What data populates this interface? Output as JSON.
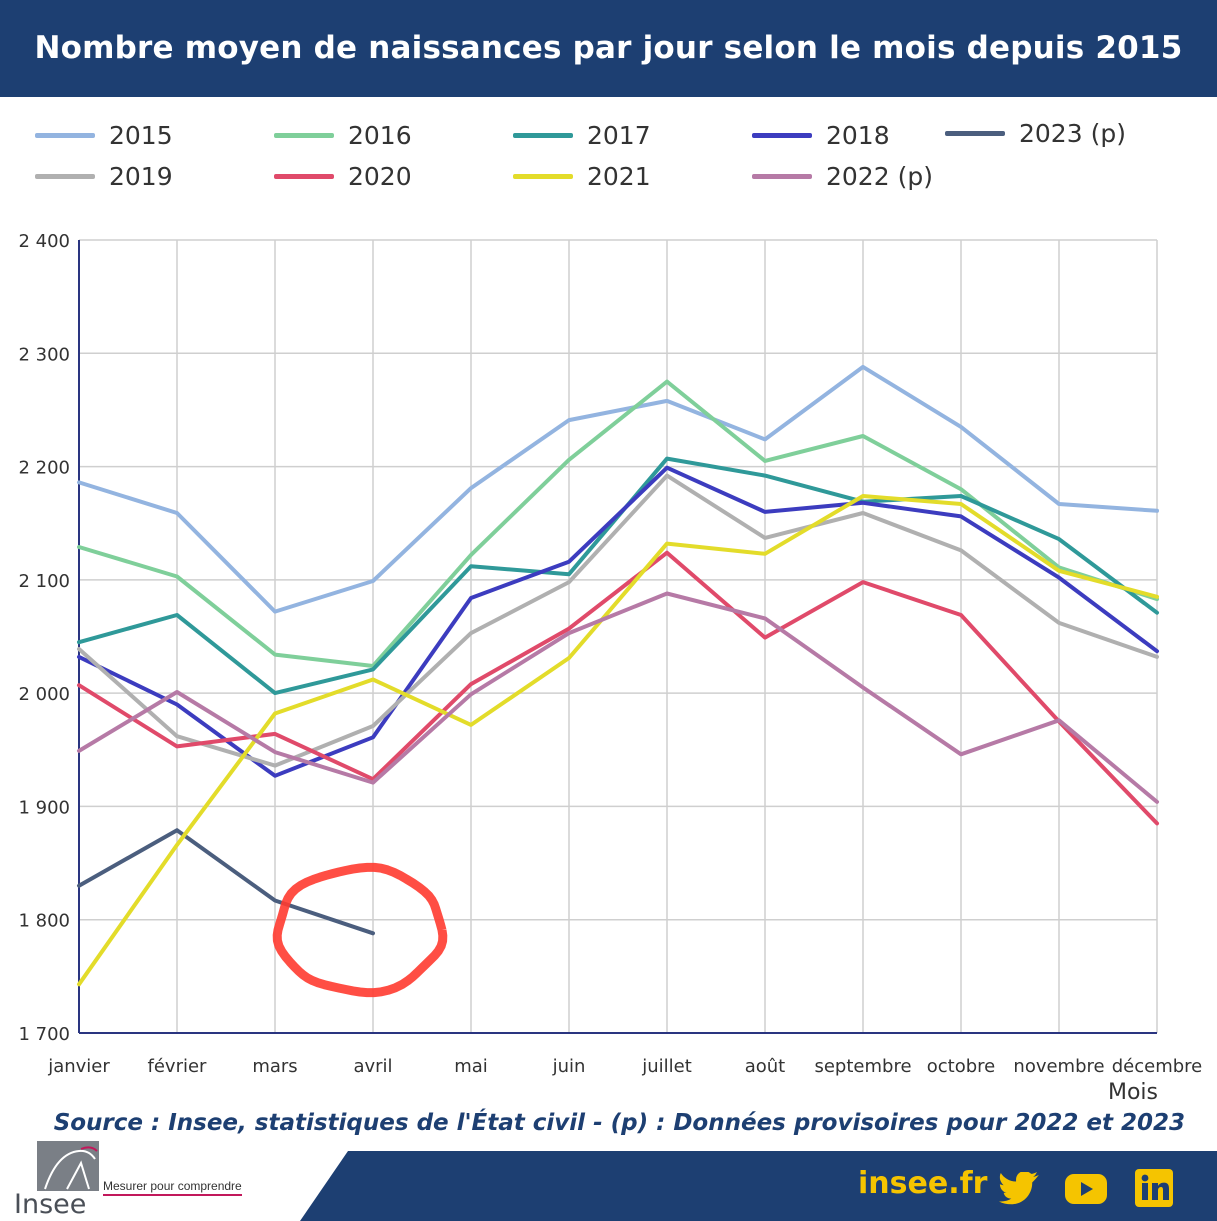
{
  "header": {
    "title": "Nombre moyen de naissances par jour selon le mois depuis 2015"
  },
  "source": "Source : Insee, statistiques de l'État civil - (p) : Données provisoires pour 2022 et 2023",
  "footer": {
    "logo_word": "Insee",
    "tagline": "Mesurer pour comprendre",
    "site": "insee.fr",
    "icons": [
      "twitter-icon",
      "youtube-icon",
      "linkedin-icon"
    ]
  },
  "colors": {
    "header_bg": "#1d3f72",
    "accent_yellow": "#f5c400",
    "annotation_circle": "#ff3b30"
  },
  "chart_data": {
    "type": "line",
    "title": "Nombre moyen de naissances par jour selon le mois depuis 2015",
    "xlabel": "Mois",
    "ylabel": "",
    "ylim": [
      1700,
      2400
    ],
    "y_ticks": [
      1700,
      1800,
      1900,
      2000,
      2100,
      2200,
      2300,
      2400
    ],
    "y_tick_labels": [
      "1 700",
      "1 800",
      "1 900",
      "2 000",
      "2 100",
      "2 200",
      "2 300",
      "2 400"
    ],
    "categories": [
      "janvier",
      "février",
      "mars",
      "avril",
      "mai",
      "juin",
      "juillet",
      "août",
      "septembre",
      "octobre",
      "novembre",
      "décembre"
    ],
    "grid": true,
    "legend_position": "top",
    "series": [
      {
        "name": "2015",
        "color": "#93b4e0",
        "values": [
          2186,
          2159,
          2072,
          2099,
          2181,
          2241,
          2258,
          2224,
          2288,
          2235,
          2167,
          2161
        ]
      },
      {
        "name": "2016",
        "color": "#7fcf9a",
        "values": [
          2129,
          2103,
          2034,
          2024,
          2122,
          2206,
          2275,
          2205,
          2227,
          2180,
          2111,
          2083
        ]
      },
      {
        "name": "2017",
        "color": "#2f9999",
        "values": [
          2045,
          2069,
          2000,
          2021,
          2112,
          2105,
          2207,
          2192,
          2169,
          2174,
          2136,
          2071
        ]
      },
      {
        "name": "2018",
        "color": "#3c3cbf",
        "values": [
          2032,
          1990,
          1927,
          1961,
          2084,
          2116,
          2199,
          2160,
          2168,
          2156,
          2102,
          2037
        ]
      },
      {
        "name": "2023 (p)",
        "color": "#4b5e7e",
        "values": [
          1830,
          1879,
          1817,
          1788,
          null,
          null,
          null,
          null,
          null,
          null,
          null,
          null
        ]
      },
      {
        "name": "2019",
        "color": "#b0b0b0",
        "values": [
          2039,
          1962,
          1936,
          1971,
          2053,
          2098,
          2192,
          2137,
          2159,
          2126,
          2062,
          2032
        ]
      },
      {
        "name": "2020",
        "color": "#e04a6a",
        "values": [
          2007,
          1953,
          1964,
          1924,
          2008,
          2057,
          2124,
          2049,
          2098,
          2069,
          1975,
          1885
        ]
      },
      {
        "name": "2021",
        "color": "#e3dc2a",
        "values": [
          1743,
          1866,
          1982,
          2012,
          1972,
          2031,
          2132,
          2123,
          2174,
          2167,
          2108,
          2085
        ]
      },
      {
        "name": "2022 (p)",
        "color": "#b67aa6",
        "values": [
          1949,
          2001,
          1948,
          1921,
          1999,
          2053,
          2088,
          2066,
          2005,
          1946,
          1976,
          1904
        ]
      }
    ]
  }
}
